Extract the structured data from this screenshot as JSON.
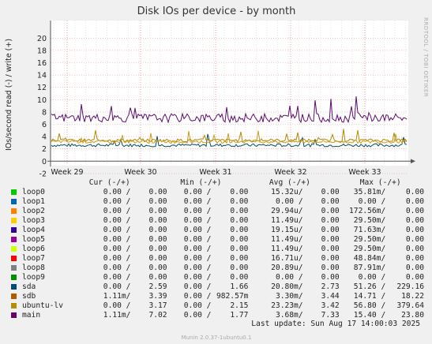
{
  "chart_data": {
    "type": "line",
    "title": "Disk IOs per device - by month",
    "ylabel": "IOs/second read (-) / write (+)",
    "ylim": [
      -2,
      20
    ],
    "yticks": [
      -2,
      0,
      2,
      4,
      6,
      8,
      10,
      12,
      14,
      16,
      18,
      20
    ],
    "xticks": [
      "Week 29",
      "Week 30",
      "Week 31",
      "Week 32",
      "Week 33"
    ],
    "grid": true,
    "side_label": "RRDTOOL / TOBI OETIKER",
    "footer": "Munin 2.0.37-1ubuntu0.1",
    "series_colors": {
      "main": "#5c0b6b",
      "ubuntu-lv": "#c89c1f",
      "sdb": "#b58800",
      "sda": "#084e5e"
    },
    "series_levels": {
      "main": 7.02,
      "ubuntu-lv": 3.17,
      "sdb": 3.39,
      "sda": 2.59
    }
  },
  "legend": {
    "headers": {
      "cur": "Cur (-/+)",
      "min": "Min (-/+)",
      "avg": "Avg (-/+)",
      "max": "Max (-/+)"
    },
    "rows": [
      {
        "name": "loop0",
        "color": "#00cc00",
        "cur_r": "0.00 /",
        "cur_w": "0.00",
        "min_r": "0.00 /",
        "min_w": "0.00",
        "avg_r": "15.32u/",
        "avg_w": "0.00",
        "max_r": "35.81m/",
        "max_w": "0.00"
      },
      {
        "name": "loop1",
        "color": "#0066b3",
        "cur_r": "0.00 /",
        "cur_w": "0.00",
        "min_r": "0.00 /",
        "min_w": "0.00",
        "avg_r": "0.00 /",
        "avg_w": "0.00",
        "max_r": "0.00 /",
        "max_w": "0.00"
      },
      {
        "name": "loop2",
        "color": "#ff8000",
        "cur_r": "0.00 /",
        "cur_w": "0.00",
        "min_r": "0.00 /",
        "min_w": "0.00",
        "avg_r": "29.94u/",
        "avg_w": "0.00",
        "max_r": "172.56m/",
        "max_w": "0.00"
      },
      {
        "name": "loop3",
        "color": "#ffcc00",
        "cur_r": "0.00 /",
        "cur_w": "0.00",
        "min_r": "0.00 /",
        "min_w": "0.00",
        "avg_r": "11.49u/",
        "avg_w": "0.00",
        "max_r": "29.50m/",
        "max_w": "0.00"
      },
      {
        "name": "loop4",
        "color": "#330099",
        "cur_r": "0.00 /",
        "cur_w": "0.00",
        "min_r": "0.00 /",
        "min_w": "0.00",
        "avg_r": "19.15u/",
        "avg_w": "0.00",
        "max_r": "71.63m/",
        "max_w": "0.00"
      },
      {
        "name": "loop5",
        "color": "#990099",
        "cur_r": "0.00 /",
        "cur_w": "0.00",
        "min_r": "0.00 /",
        "min_w": "0.00",
        "avg_r": "11.49u/",
        "avg_w": "0.00",
        "max_r": "29.50m/",
        "max_w": "0.00"
      },
      {
        "name": "loop6",
        "color": "#ccff00",
        "cur_r": "0.00 /",
        "cur_w": "0.00",
        "min_r": "0.00 /",
        "min_w": "0.00",
        "avg_r": "11.49u/",
        "avg_w": "0.00",
        "max_r": "29.50m/",
        "max_w": "0.00"
      },
      {
        "name": "loop7",
        "color": "#ff0000",
        "cur_r": "0.00 /",
        "cur_w": "0.00",
        "min_r": "0.00 /",
        "min_w": "0.00",
        "avg_r": "16.71u/",
        "avg_w": "0.00",
        "max_r": "48.84m/",
        "max_w": "0.00"
      },
      {
        "name": "loop8",
        "color": "#808080",
        "cur_r": "0.00 /",
        "cur_w": "0.00",
        "min_r": "0.00 /",
        "min_w": "0.00",
        "avg_r": "20.89u/",
        "avg_w": "0.00",
        "max_r": "87.91m/",
        "max_w": "0.00"
      },
      {
        "name": "loop9",
        "color": "#008f00",
        "cur_r": "0.00 /",
        "cur_w": "0.00",
        "min_r": "0.00 /",
        "min_w": "0.00",
        "avg_r": "0.00 /",
        "avg_w": "0.00",
        "max_r": "0.00 /",
        "max_w": "0.00"
      },
      {
        "name": "sda",
        "color": "#00487d",
        "cur_r": "0.00 /",
        "cur_w": "2.59",
        "min_r": "0.00 /",
        "min_w": "1.66",
        "avg_r": "20.80m/",
        "avg_w": "2.73",
        "max_r": "51.26 /",
        "max_w": "229.16"
      },
      {
        "name": "sdb",
        "color": "#b35a00",
        "cur_r": "1.11m/",
        "cur_w": "3.39",
        "min_r": "0.00 /",
        "min_w": "982.57m",
        "avg_r": "3.30m/",
        "avg_w": "3.44",
        "max_r": "14.71 /",
        "max_w": "18.22"
      },
      {
        "name": "ubuntu-lv",
        "color": "#b38f00",
        "cur_r": "0.00 /",
        "cur_w": "3.17",
        "min_r": "0.00 /",
        "min_w": "2.15",
        "avg_r": "23.23m/",
        "avg_w": "3.42",
        "max_r": "56.80 /",
        "max_w": "379.64"
      },
      {
        "name": "main",
        "color": "#6b006b",
        "cur_r": "1.11m/",
        "cur_w": "7.02",
        "min_r": "0.00 /",
        "min_w": "1.77",
        "avg_r": "3.68m/",
        "avg_w": "7.33",
        "max_r": "15.40 /",
        "max_w": "23.80"
      }
    ]
  },
  "last_update": "Last update: Sun Aug 17 14:00:03 2025"
}
